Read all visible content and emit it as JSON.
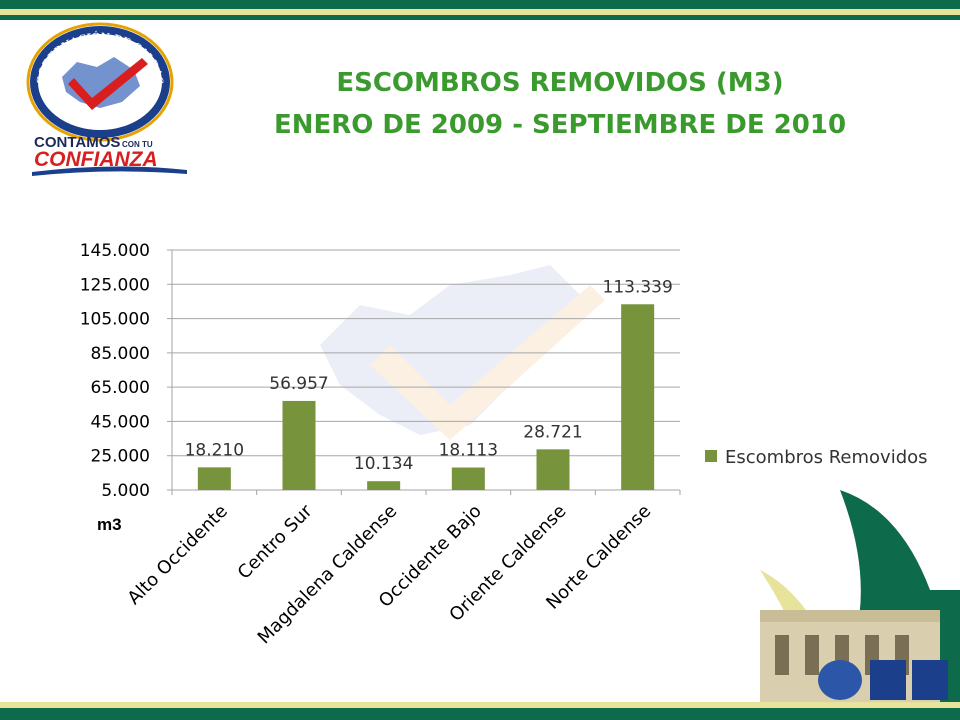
{
  "header": {
    "title_line1": "ESCOMBROS REMOVIDOS (M3)",
    "title_line2": "ENERO DE 2009 - SEPTIEMBRE DE 2010"
  },
  "logo": {
    "seal_text_top": "GOBERNACIÓN DE CALDAS",
    "seal_text_bottom": "NUESTRA MEJOR EMPRESA",
    "slogan_line1": "CONTAMOS",
    "slogan_small": "CON TU",
    "slogan_line2": "CONFIANZA",
    "colors": {
      "ring": "#1c3f8c",
      "accent": "#d81e1e",
      "gold": "#e5a300"
    }
  },
  "chart_data": {
    "type": "bar",
    "categories": [
      "Alto Occidente",
      "Centro Sur",
      "Magdalena Caldense",
      "Occidente Bajo",
      "Oriente Caldense",
      "Norte Caldense"
    ],
    "series": [
      {
        "name": "Escombros Removidos",
        "values": [
          18210,
          56957,
          10134,
          18113,
          28721,
          113339
        ],
        "labels": [
          "18.210",
          "56.957",
          "10.134",
          "18.113",
          "28.721",
          "113.339"
        ],
        "color": "#77933c"
      }
    ],
    "yticks": [
      "145.000",
      "125.000",
      "105.000",
      "85.000",
      "65.000",
      "45.000",
      "25.000",
      "5.000"
    ],
    "ytick_values": [
      145000,
      125000,
      105000,
      85000,
      65000,
      45000,
      25000,
      5000
    ],
    "ylim": [
      5000,
      145000
    ],
    "ylabel": "m3",
    "grid": true,
    "legend_position": "right"
  }
}
